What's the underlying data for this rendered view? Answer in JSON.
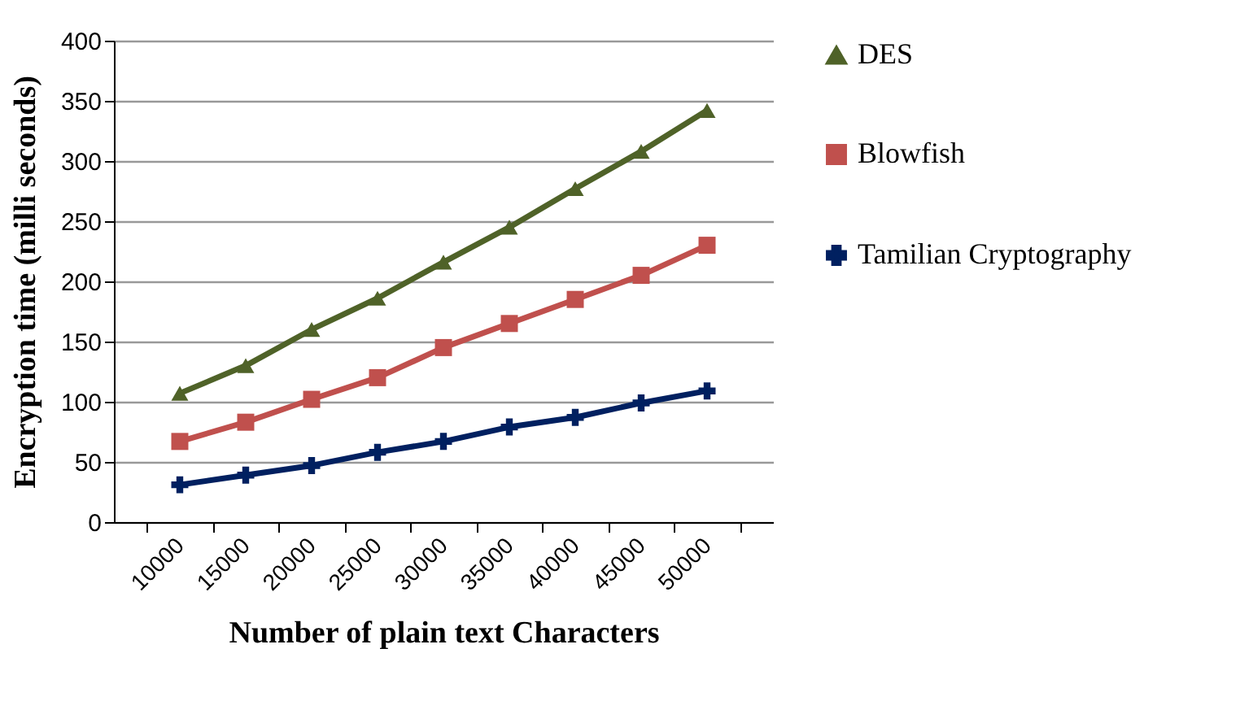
{
  "chart_data": {
    "type": "line",
    "xlabel": "Number of plain text  Characters",
    "ylabel": "Encryption time (milli seconds)",
    "categories": [
      "10000",
      "15000",
      "20000",
      "25000",
      "30000",
      "35000",
      "40000",
      "45000",
      "50000"
    ],
    "series": [
      {
        "name": "DES",
        "color": "#4f6228",
        "marker": "triangle",
        "values": [
          107,
          130,
          160,
          186,
          216,
          245,
          277,
          308,
          342
        ]
      },
      {
        "name": "Blowfish",
        "color": "#c0504d",
        "marker": "square",
        "values": [
          67,
          83,
          102,
          120,
          145,
          165,
          185,
          205,
          230
        ]
      },
      {
        "name": "Tamilian Cryptography",
        "color": "#002060",
        "marker": "cross",
        "values": [
          31,
          39,
          47,
          58,
          67,
          79,
          87,
          99,
          109
        ]
      }
    ],
    "ylim": [
      0,
      400
    ],
    "yticks": [
      0,
      50,
      100,
      150,
      200,
      250,
      300,
      350,
      400
    ],
    "grid": "y",
    "legend": "right"
  }
}
